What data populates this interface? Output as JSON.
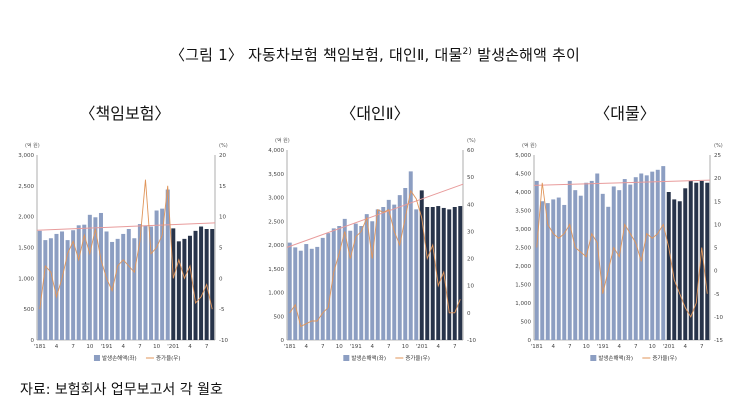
{
  "figure": {
    "title": "〈그림 1〉 자동차보험 책임보험, 대인Ⅱ, 대물",
    "title_sup": "2)",
    "title_tail": " 발생손해액 추이",
    "source": "자료: 보험회사 업무보고서 각 월호"
  },
  "colors": {
    "bar_light": "#8c9ec2",
    "bar_dark": "#28344a",
    "line": "#e0955a",
    "trend": "#e89b9b",
    "axis": "#777777"
  },
  "chart_data": [
    {
      "type": "bar",
      "title": "〈책임보험〉",
      "y_unit": "(억 원)",
      "y2_unit": "(%)",
      "ylim": [
        0,
        3000
      ],
      "yticks": [
        "0",
        "500",
        "1,000",
        "1,500",
        "2,000",
        "2,500",
        "3,000"
      ],
      "y2lim": [
        -10,
        20
      ],
      "y2ticks": [
        "-10",
        "-5",
        "0",
        "5",
        "10",
        "15",
        "20"
      ],
      "categories": [
        "'181",
        "2",
        "3",
        "4",
        "5",
        "6",
        "7",
        "8",
        "9",
        "10",
        "11",
        "12",
        "'191",
        "2",
        "3",
        "4",
        "5",
        "6",
        "7",
        "8",
        "9",
        "10",
        "11",
        "12",
        "'201",
        "2",
        "3",
        "4",
        "5",
        "6",
        "7",
        "8"
      ],
      "xtick_labels": [
        "'181",
        "4",
        "7",
        "10",
        "'191",
        "4",
        "7",
        "10",
        "'201",
        "4",
        "7"
      ],
      "legend": [
        "발생손해액(좌)",
        "증가율(우)"
      ],
      "dark_from": 24,
      "series": [
        {
          "name": "발생손해액(좌)",
          "axis": "left",
          "values": [
            1770,
            1620,
            1650,
            1720,
            1760,
            1620,
            1780,
            1860,
            1870,
            2030,
            1990,
            2060,
            1760,
            1590,
            1640,
            1720,
            1800,
            1650,
            1880,
            1850,
            1840,
            2100,
            2130,
            2440,
            1810,
            1600,
            1640,
            1690,
            1770,
            1840,
            1800,
            1800
          ]
        },
        {
          "name": "증가율(우)",
          "axis": "right",
          "values": [
            -5,
            2,
            1,
            -3,
            0,
            4,
            6,
            3,
            7,
            4,
            8,
            3,
            0,
            -2,
            2,
            3,
            2,
            1,
            6,
            16,
            4,
            5,
            7,
            15,
            0,
            3,
            0,
            2,
            -4,
            -3,
            -1,
            -5
          ]
        }
      ],
      "trend": {
        "axis": "left",
        "start": 1780,
        "end": 1900
      }
    },
    {
      "type": "bar",
      "title": "〈대인Ⅱ〉",
      "y_unit": "(억 원)",
      "y2_unit": "(%)",
      "ylim": [
        0,
        4000
      ],
      "yticks": [
        "0",
        "500",
        "1,000",
        "1,500",
        "2,000",
        "2,500",
        "3,000",
        "3,500",
        "4,000"
      ],
      "y2lim": [
        -10,
        60
      ],
      "y2ticks": [
        "-10",
        "0",
        "10",
        "20",
        "30",
        "40",
        "50",
        "60"
      ],
      "categories": [
        "'181",
        "2",
        "3",
        "4",
        "5",
        "6",
        "7",
        "8",
        "9",
        "10",
        "11",
        "12",
        "'191",
        "2",
        "3",
        "4",
        "5",
        "6",
        "7",
        "8",
        "9",
        "10",
        "11",
        "12",
        "'201",
        "2",
        "3",
        "4",
        "5",
        "6",
        "7",
        "8"
      ],
      "xtick_labels": [
        "'181",
        "4",
        "7",
        "10",
        "'191",
        "4",
        "7",
        "10",
        "'201",
        "4",
        "7"
      ],
      "legend": [
        "발생손해액(좌)",
        "증가율(우)"
      ],
      "dark_from": 24,
      "series": [
        {
          "name": "발생손해액(좌)",
          "axis": "left",
          "values": [
            2050,
            1950,
            1880,
            2020,
            1920,
            1960,
            2150,
            2250,
            2350,
            2400,
            2550,
            2300,
            2450,
            2400,
            2650,
            2500,
            2750,
            2800,
            2950,
            2850,
            3050,
            3200,
            3550,
            2750,
            3150,
            2800,
            2800,
            2820,
            2780,
            2750,
            2800,
            2820
          ]
        },
        {
          "name": "증가율(우)",
          "axis": "right",
          "values": [
            0,
            3,
            -5,
            -4,
            -3,
            -3,
            0,
            2,
            15,
            22,
            30,
            20,
            28,
            30,
            35,
            20,
            38,
            37,
            38,
            30,
            25,
            35,
            45,
            42,
            35,
            20,
            25,
            10,
            15,
            0,
            0,
            5
          ]
        }
      ],
      "trend": {
        "axis": "left",
        "start": 1950,
        "end": 3280
      }
    },
    {
      "type": "bar",
      "title": "〈대물〉",
      "y_unit": "(억 원)",
      "y2_unit": "(%)",
      "ylim": [
        0,
        5000
      ],
      "yticks": [
        "0",
        "500",
        "1,000",
        "1,500",
        "2,000",
        "2,500",
        "3,000",
        "3,500",
        "4,000",
        "4,500",
        "5,000"
      ],
      "y2lim": [
        -15,
        25
      ],
      "y2ticks": [
        "-15",
        "-10",
        "-5",
        "0",
        "5",
        "10",
        "15",
        "20",
        "25"
      ],
      "categories": [
        "'181",
        "2",
        "3",
        "4",
        "5",
        "6",
        "7",
        "8",
        "9",
        "10",
        "11",
        "12",
        "'191",
        "2",
        "3",
        "4",
        "5",
        "6",
        "7",
        "8",
        "9",
        "10",
        "11",
        "12",
        "'201",
        "2",
        "3",
        "4",
        "5",
        "6",
        "7",
        "8"
      ],
      "xtick_labels": [
        "'181",
        "4",
        "7",
        "10",
        "'191",
        "4",
        "7",
        "10",
        "'201",
        "4",
        "7"
      ],
      "legend": [
        "발생손해액(좌)",
        "증가율(우)"
      ],
      "dark_from": 24,
      "series": [
        {
          "name": "발생손해액(좌)",
          "axis": "left",
          "values": [
            4300,
            3750,
            3700,
            3800,
            3850,
            3650,
            4300,
            4050,
            3900,
            4250,
            4300,
            4500,
            3950,
            3600,
            4150,
            4050,
            4350,
            4200,
            4400,
            4500,
            4450,
            4550,
            4600,
            4700,
            4000,
            3800,
            3750,
            4100,
            4300,
            4250,
            4300,
            4250
          ]
        },
        {
          "name": "증가율(우)",
          "axis": "right",
          "values": [
            5,
            19,
            10,
            8,
            7,
            8,
            10,
            5,
            4,
            3,
            8,
            6,
            -5,
            0,
            5,
            3,
            10,
            8,
            6,
            2,
            8,
            7,
            8,
            10,
            5,
            -2,
            -5,
            -8,
            -10,
            -7,
            5,
            -5
          ]
        }
      ],
      "trend": {
        "axis": "left",
        "start": 4180,
        "end": 4320
      }
    }
  ]
}
